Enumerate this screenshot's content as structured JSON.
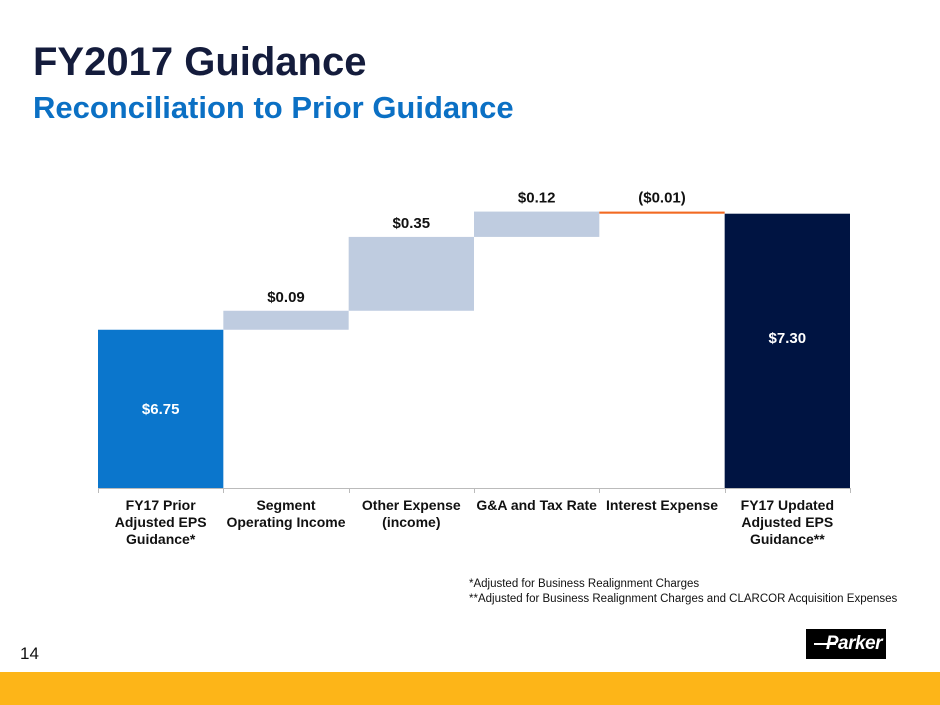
{
  "header": {
    "title": "FY2017 Guidance",
    "subtitle": "Reconciliation to Prior Guidance"
  },
  "footnotes": [
    "*Adjusted for Business Realignment Charges",
    "**Adjusted for Business Realignment Charges and CLARCOR Acquisition Expenses"
  ],
  "page_number": "14",
  "logo_text": "Parker",
  "colors": {
    "start": "#0b76cc",
    "step": "#bfcce0",
    "negative": "#f26a22",
    "total": "#001442",
    "band": "#fdb518"
  },
  "chart_data": {
    "type": "bar",
    "subtype": "waterfall",
    "categories": [
      "FY17 Prior Adjusted EPS Guidance*",
      "Segment Operating Income",
      "Other Expense (income)",
      "G&A and Tax Rate",
      "Interest Expense",
      "FY17 Updated Adjusted EPS Guidance**"
    ],
    "category_lines": [
      [
        "FY17 Prior",
        "Adjusted EPS",
        "Guidance*"
      ],
      [
        "Segment",
        "Operating Income"
      ],
      [
        "Other Expense",
        "(income)"
      ],
      [
        "G&A and Tax Rate"
      ],
      [
        "Interest Expense"
      ],
      [
        "FY17 Updated",
        "Adjusted EPS",
        "Guidance**"
      ]
    ],
    "values": [
      6.75,
      0.09,
      0.35,
      0.12,
      -0.01,
      7.3
    ],
    "kinds": [
      "total",
      "delta",
      "delta",
      "delta",
      "delta",
      "total"
    ],
    "data_labels": [
      "$6.75",
      "$0.09",
      "$0.35",
      "$0.12",
      "($0.01)",
      "$7.30"
    ],
    "title": "",
    "xlabel": "",
    "ylabel": "",
    "ylim": [
      6.0,
      7.4
    ],
    "grid": false
  }
}
